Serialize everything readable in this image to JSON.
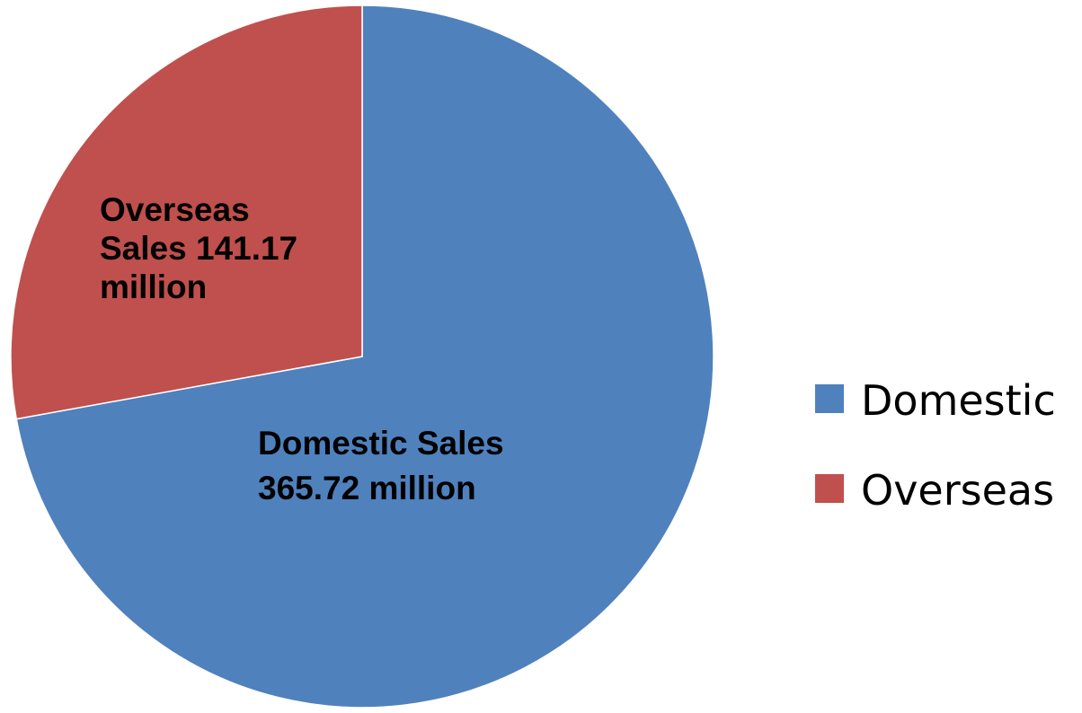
{
  "chart_data": {
    "type": "pie",
    "categories": [
      "Domestic",
      "Overseas"
    ],
    "values": [
      365.72,
      141.17
    ],
    "colors": [
      "#4f81bd",
      "#c0504d"
    ],
    "data_labels": [
      [
        "Domestic  Sales",
        "365.72 million"
      ],
      [
        "Overseas",
        "Sales 141.17",
        "million"
      ]
    ],
    "legend": {
      "position": "right",
      "entries": [
        "Domestic",
        "Overseas"
      ]
    },
    "start": "12 o'clock",
    "direction": "clockwise"
  }
}
